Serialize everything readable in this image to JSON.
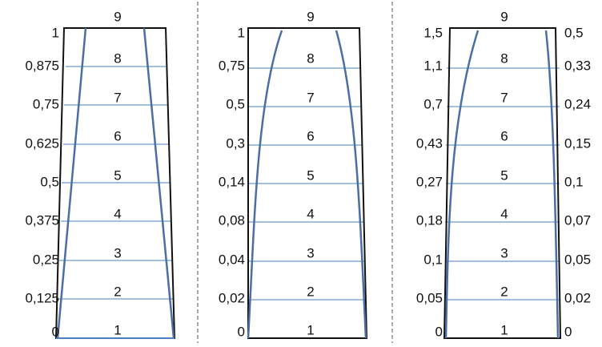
{
  "panels": [
    {
      "levels": [
        "9",
        "8",
        "7",
        "6",
        "5",
        "4",
        "3",
        "2",
        "1"
      ],
      "left_labels": [
        "1",
        "0,875",
        "0,75",
        "0,625",
        "0,5",
        "0,375",
        "0,25",
        "0,125",
        "0"
      ]
    },
    {
      "levels": [
        "9",
        "8",
        "7",
        "6",
        "5",
        "4",
        "3",
        "2",
        "1"
      ],
      "left_labels": [
        "1",
        "0,75",
        "0,5",
        "0,3",
        "0,14",
        "0,08",
        "0,04",
        "0,02",
        "0"
      ]
    },
    {
      "levels": [
        "9",
        "8",
        "7",
        "6",
        "5",
        "4",
        "3",
        "2",
        "1"
      ],
      "left_labels": [
        "1,5",
        "1,1",
        "0,7",
        "0,43",
        "0,27",
        "0,18",
        "0,1",
        "0,05",
        "0"
      ],
      "right_labels": [
        "0,5",
        "0,33",
        "0,24",
        "0,15",
        "0,1",
        "0,07",
        "0,05",
        "0,02",
        "0"
      ]
    }
  ]
}
